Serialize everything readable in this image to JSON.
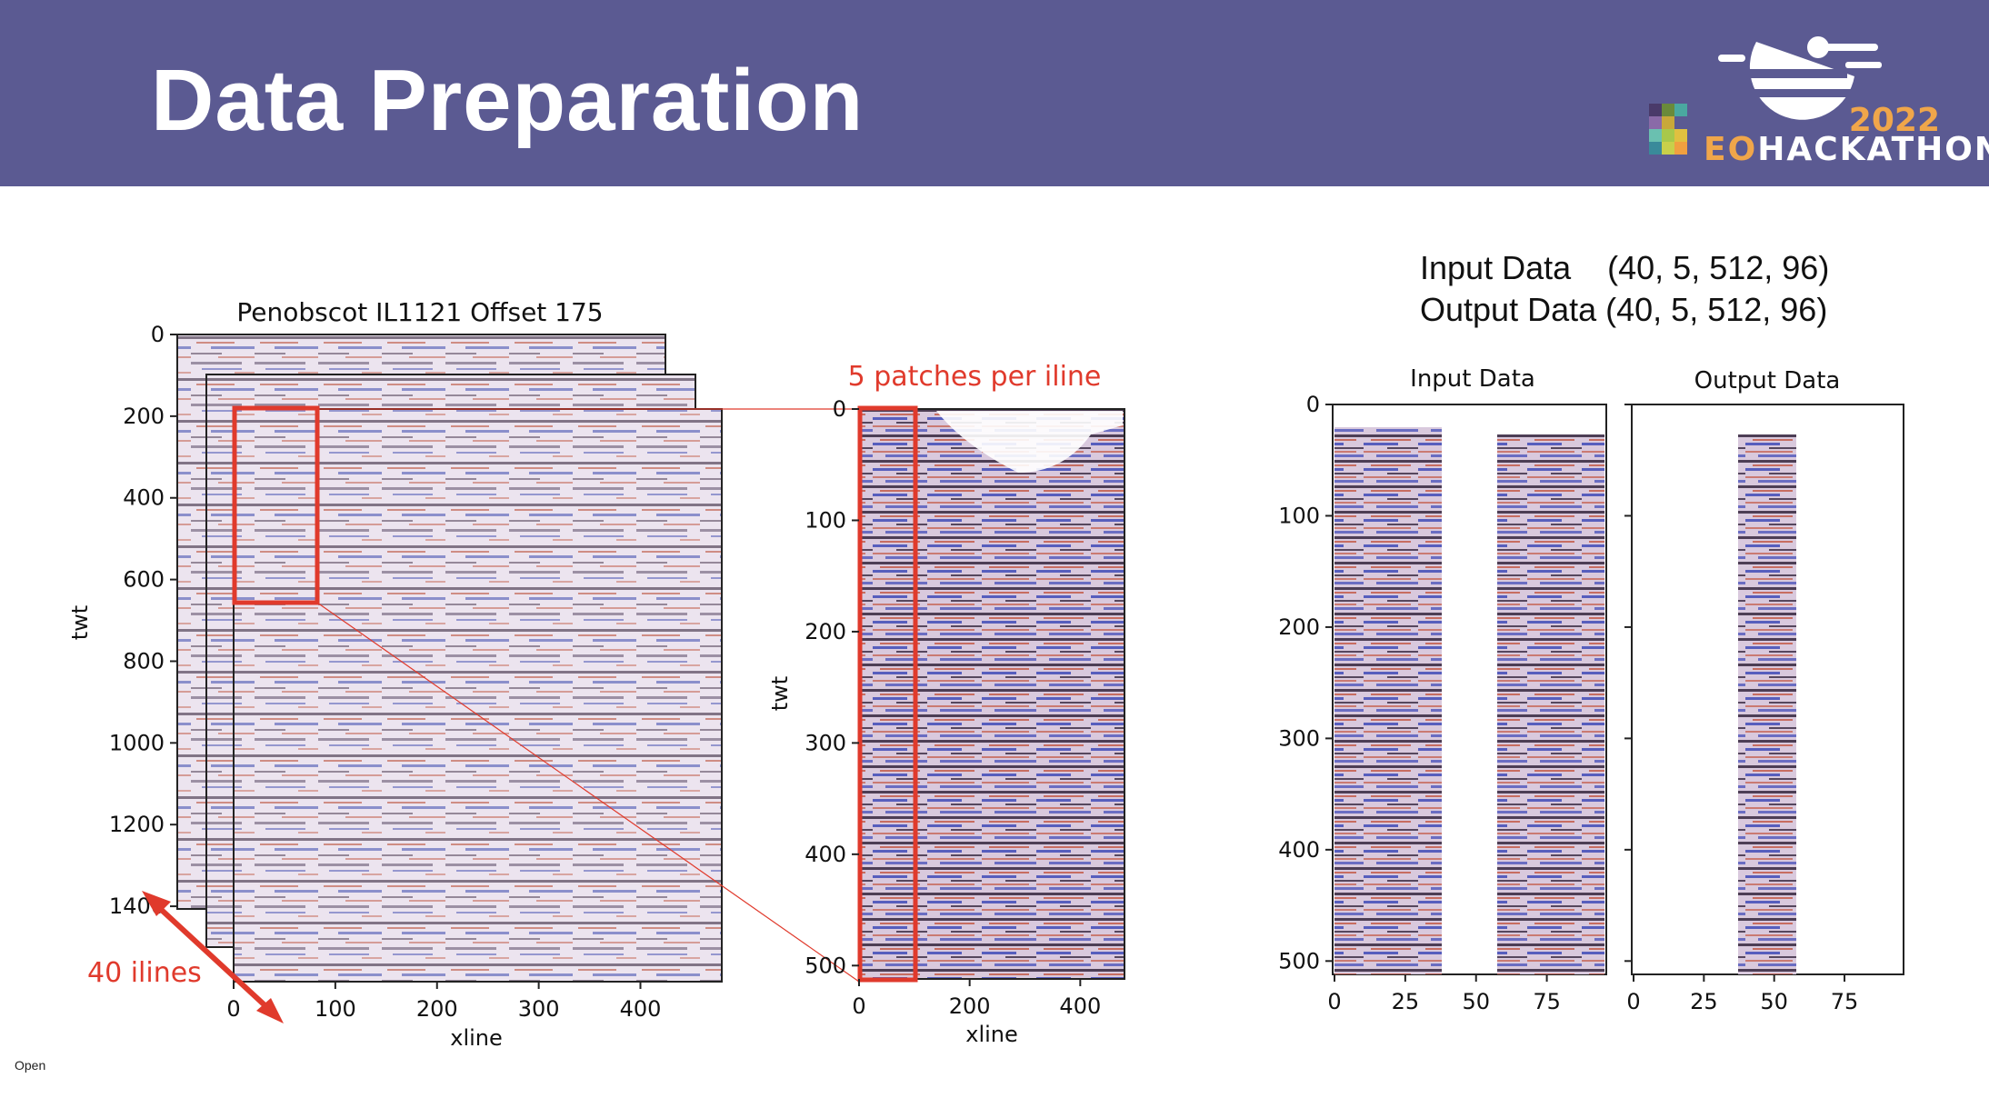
{
  "slide": {
    "title": "Data Preparation",
    "footer_label": "Open"
  },
  "logo": {
    "year": "2022",
    "name_prefix": "EO",
    "name_suffix": "HACKATHON",
    "icon": "satellite-icon"
  },
  "shape_info": {
    "input_label": "Input Data",
    "input_shape": "(40, 5, 512, 96)",
    "output_label": "Output Data",
    "output_shape": "(40, 5, 512, 96)"
  },
  "colors": {
    "header": "#5b5a92",
    "annotation": "#e03a2c",
    "seismic_dark": "#2a1830",
    "seismic_red": "#b8452c",
    "seismic_blue": "#2a3aa8"
  },
  "annotations": {
    "iline_count": "40 ilines",
    "patches": "5 patches per iline"
  },
  "chart_data": [
    {
      "type": "heatmap",
      "title": "Penobscot IL1121 Offset 175",
      "xlabel": "xline",
      "ylabel": "twt",
      "x_ticks": [
        "0",
        "100",
        "200",
        "300",
        "400"
      ],
      "y_ticks": [
        "0",
        "200",
        "400",
        "600",
        "800",
        "1000",
        "1200",
        "1400"
      ],
      "xlim": [
        0,
        480
      ],
      "ylim": [
        0,
        1500
      ],
      "stack_count": 3
    },
    {
      "type": "heatmap",
      "title": "",
      "xlabel": "xline",
      "ylabel": "twt",
      "x_ticks": [
        "0",
        "200",
        "400"
      ],
      "y_ticks": [
        "0",
        "100",
        "200",
        "300",
        "400",
        "500"
      ],
      "xlim": [
        0,
        480
      ],
      "ylim": [
        0,
        512
      ]
    },
    {
      "type": "heatmap",
      "title": "Input Data",
      "xlabel": "",
      "ylabel": "",
      "x_ticks": [
        "0",
        "25",
        "50",
        "75"
      ],
      "y_ticks": [
        "0",
        "100",
        "200",
        "300",
        "400",
        "500"
      ],
      "xlim": [
        0,
        96
      ],
      "ylim": [
        0,
        512
      ]
    },
    {
      "type": "heatmap",
      "title": "Output Data",
      "xlabel": "",
      "ylabel": "",
      "x_ticks": [
        "0",
        "25",
        "50",
        "75"
      ],
      "xlim": [
        0,
        96
      ],
      "ylim": [
        0,
        512
      ]
    }
  ]
}
